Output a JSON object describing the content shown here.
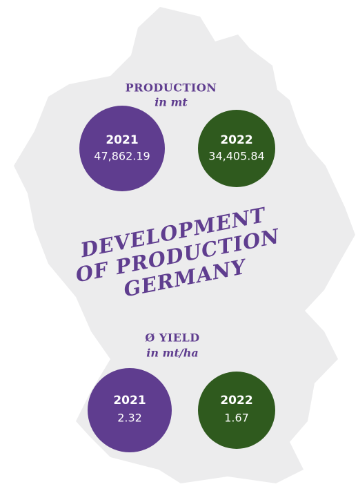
{
  "production": {
    "title": "PRODUCTION",
    "unit": "in mt",
    "items": [
      {
        "year": "2021",
        "value": "47,862.19"
      },
      {
        "year": "2022",
        "value": "34,405.84"
      }
    ]
  },
  "heading": [
    "DEVELOPMENT",
    "OF PRODUCTION",
    "GERMANY"
  ],
  "yield": {
    "title": "Ø YIELD",
    "unit": "in mt/ha",
    "items": [
      {
        "year": "2021",
        "value": "2.32"
      },
      {
        "year": "2022",
        "value": "1.67"
      }
    ]
  }
}
